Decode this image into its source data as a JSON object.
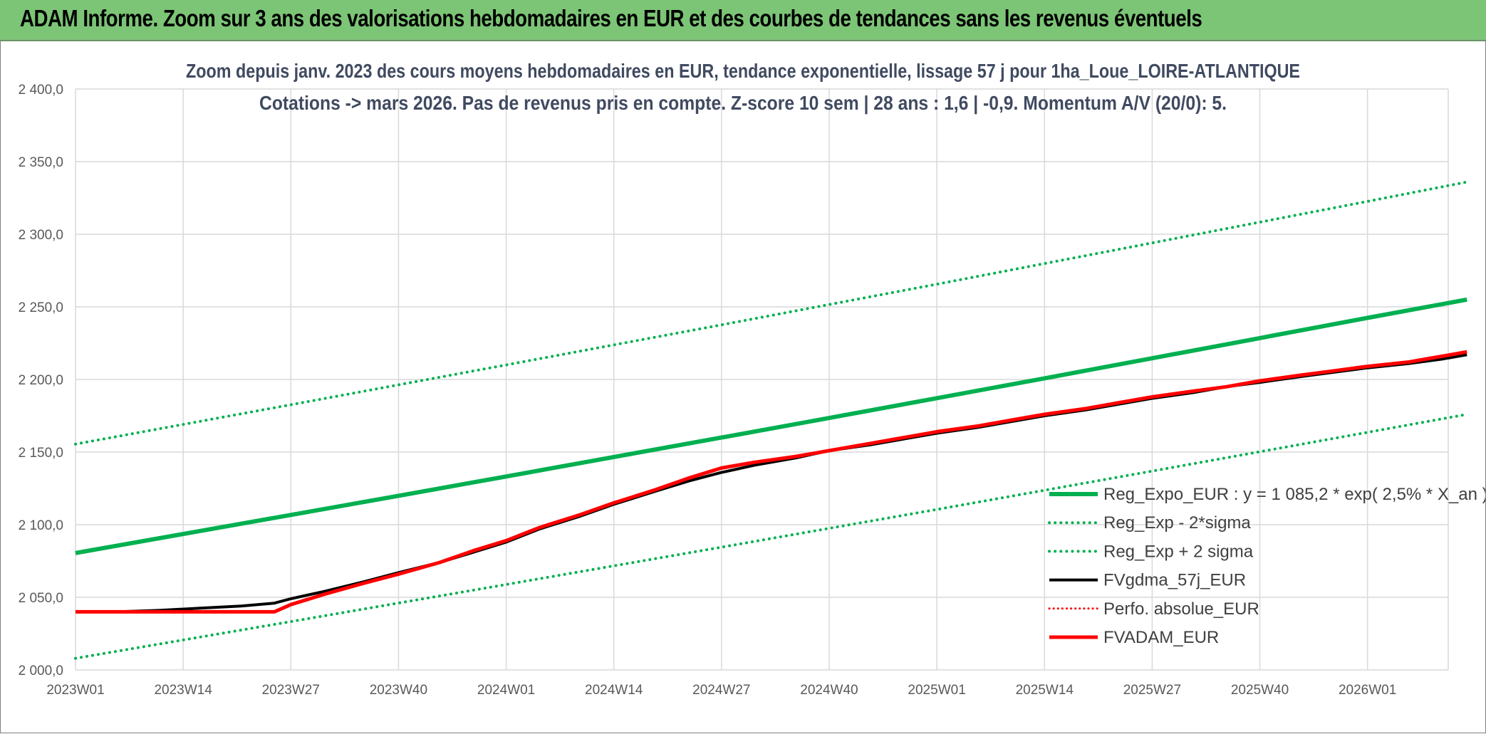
{
  "header": {
    "title": "ADAM Informe. Zoom sur 3 ans des valorisations hebdomadaires en EUR et des courbes de tendances sans les revenus éventuels"
  },
  "colors": {
    "header_bg": "#7cc576",
    "trend_green": "#00b050",
    "fvgdma_black": "#000000",
    "fvadam_red": "#ff0000",
    "grid": "#d9d9d9"
  },
  "chart_data": {
    "type": "line",
    "title_lines": [
      "Zoom depuis janv. 2023 des cours moyens hebdomadaires en EUR, tendance exponentielle, lissage 57 j pour 1ha_Loue_LOIRE-ATLANTIQUE",
      "Cotations -> mars 2026. Pas de revenus pris en compte. Z-score 10 sem | 28 ans : 1,6 | -0,9. Momentum A/V (20/0): 5."
    ],
    "x_categories": [
      "2023W01",
      "2023W14",
      "2023W27",
      "2023W40",
      "2024W01",
      "2024W14",
      "2024W27",
      "2024W40",
      "2025W01",
      "2025W14",
      "2025W27",
      "2025W40",
      "2026W01"
    ],
    "x_week_range": [
      0,
      168
    ],
    "ylim": [
      2000,
      2400
    ],
    "y_ticks": [
      2000,
      2050,
      2100,
      2150,
      2200,
      2250,
      2300,
      2350,
      2400
    ],
    "y_tick_labels": [
      "2 000,0",
      "2 050,0",
      "2 100,0",
      "2 150,0",
      "2 200,0",
      "2 250,0",
      "2 300,0",
      "2 350,0",
      "2 400,0"
    ],
    "grid": true,
    "legend_position": "right",
    "series": [
      {
        "name": "Reg_Expo_EUR : y = 1 085,2 * exp( 2,5% *  X_an )",
        "color": "#00b050",
        "style": "solid",
        "width": 6,
        "weeks": [
          0,
          13,
          26,
          39,
          52,
          65,
          78,
          91,
          104,
          117,
          130,
          143,
          156,
          168
        ],
        "values": [
          2080.5,
          2093.6,
          2106.7,
          2119.9,
          2133.2,
          2146.6,
          2160.0,
          2173.5,
          2187.1,
          2200.8,
          2214.6,
          2228.5,
          2242.4,
          2255.0
        ]
      },
      {
        "name": "Reg_Exp - 2*sigma",
        "color": "#00b050",
        "style": "dotted",
        "width": 4,
        "weeks": [
          0,
          26,
          52,
          78,
          104,
          130,
          156,
          168
        ],
        "values": [
          2008.0,
          2033.3,
          2058.8,
          2084.5,
          2110.5,
          2136.9,
          2163.6,
          2176.0
        ]
      },
      {
        "name": "Reg_Exp + 2 sigma",
        "color": "#00b050",
        "style": "dotted",
        "width": 4,
        "weeks": [
          0,
          26,
          52,
          78,
          104,
          130,
          156,
          168
        ],
        "values": [
          2155.5,
          2182.6,
          2210.0,
          2237.6,
          2265.6,
          2294.0,
          2322.6,
          2336.0
        ]
      },
      {
        "name": "FVgdma_57j_EUR",
        "color": "#000000",
        "style": "solid",
        "width": 4,
        "weeks": [
          0,
          5,
          10,
          15,
          20,
          24,
          26,
          30,
          35,
          39,
          44,
          48,
          52,
          56,
          61,
          65,
          70,
          74,
          78,
          82,
          87,
          91,
          96,
          100,
          104,
          109,
          113,
          117,
          122,
          126,
          130,
          135,
          139,
          143,
          148,
          152,
          156,
          161,
          165,
          168
        ],
        "values": [
          2040.0,
          2040.0,
          2041.0,
          2042.5,
          2044.0,
          2046.0,
          2049.0,
          2054.0,
          2061.0,
          2067.0,
          2074.0,
          2081.0,
          2088.0,
          2097.0,
          2106.0,
          2114.0,
          2123.0,
          2130.0,
          2136.0,
          2141.0,
          2146.0,
          2151.0,
          2155.0,
          2159.0,
          2163.0,
          2167.0,
          2171.0,
          2175.0,
          2179.0,
          2183.0,
          2187.0,
          2191.0,
          2195.0,
          2198.0,
          2202.0,
          2205.0,
          2208.0,
          2211.0,
          2214.0,
          2217.0
        ]
      },
      {
        "name": "Perfo. absolue_EUR",
        "color": "#ff0000",
        "style": "dotted",
        "width": 3,
        "weeks": [],
        "values": []
      },
      {
        "name": "FVADAM_EUR",
        "color": "#ff0000",
        "style": "solid",
        "width": 5,
        "weeks": [
          0,
          5,
          10,
          15,
          20,
          24,
          26,
          30,
          35,
          39,
          44,
          48,
          52,
          56,
          61,
          65,
          70,
          74,
          78,
          82,
          87,
          91,
          96,
          100,
          104,
          109,
          113,
          117,
          122,
          126,
          130,
          135,
          139,
          143,
          148,
          152,
          156,
          161,
          165,
          168
        ],
        "values": [
          2040.0,
          2040.0,
          2040.0,
          2040.0,
          2040.0,
          2040.0,
          2045.0,
          2052.0,
          2060.0,
          2066.0,
          2074.0,
          2082.0,
          2089.0,
          2098.0,
          2107.0,
          2115.0,
          2124.0,
          2132.0,
          2139.0,
          2143.0,
          2147.0,
          2151.0,
          2156.0,
          2160.0,
          2164.0,
          2168.0,
          2172.0,
          2176.0,
          2180.0,
          2184.0,
          2188.0,
          2192.0,
          2195.0,
          2199.0,
          2203.0,
          2206.0,
          2209.0,
          2212.0,
          2216.0,
          2219.0
        ]
      }
    ]
  }
}
